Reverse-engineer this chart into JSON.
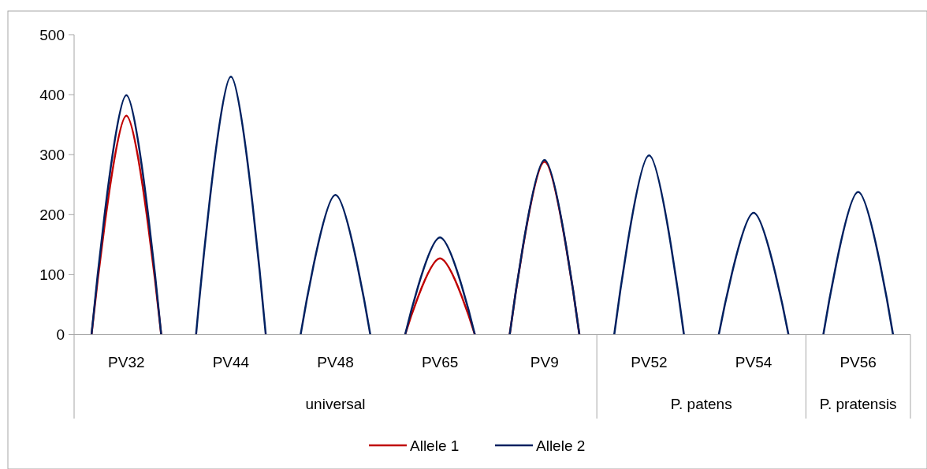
{
  "chart_data": {
    "type": "line",
    "categories": [
      null,
      "PV32",
      null,
      null,
      "PV44",
      null,
      null,
      "PV48",
      null,
      null,
      "PV65",
      null,
      null,
      "PV9",
      null,
      null,
      "PV52",
      null,
      null,
      "PV54",
      null,
      null,
      "PV56",
      null
    ],
    "series": [
      {
        "name": "Allele 1",
        "color": "#c00000",
        "values": [
          0,
          365,
          0,
          null,
          null,
          null,
          null,
          null,
          null,
          0,
          127,
          0,
          0,
          288,
          0,
          null,
          null,
          null,
          null,
          null,
          null,
          null,
          null,
          null
        ]
      },
      {
        "name": "Allele 2",
        "color": "#002060",
        "values": [
          0,
          399,
          0,
          0,
          430,
          0,
          0,
          233,
          0,
          0,
          162,
          0,
          0,
          291,
          0,
          0,
          299,
          0,
          0,
          203,
          0,
          0,
          238,
          0
        ]
      }
    ],
    "ylim": [
      0,
      500
    ],
    "yticks": [
      0,
      100,
      200,
      300,
      400,
      500
    ],
    "grid": false,
    "legend": "bottom",
    "marker": "none",
    "line_style": "solid",
    "annotations": [
      "universal",
      "P. patens",
      "P. pratensis"
    ]
  }
}
